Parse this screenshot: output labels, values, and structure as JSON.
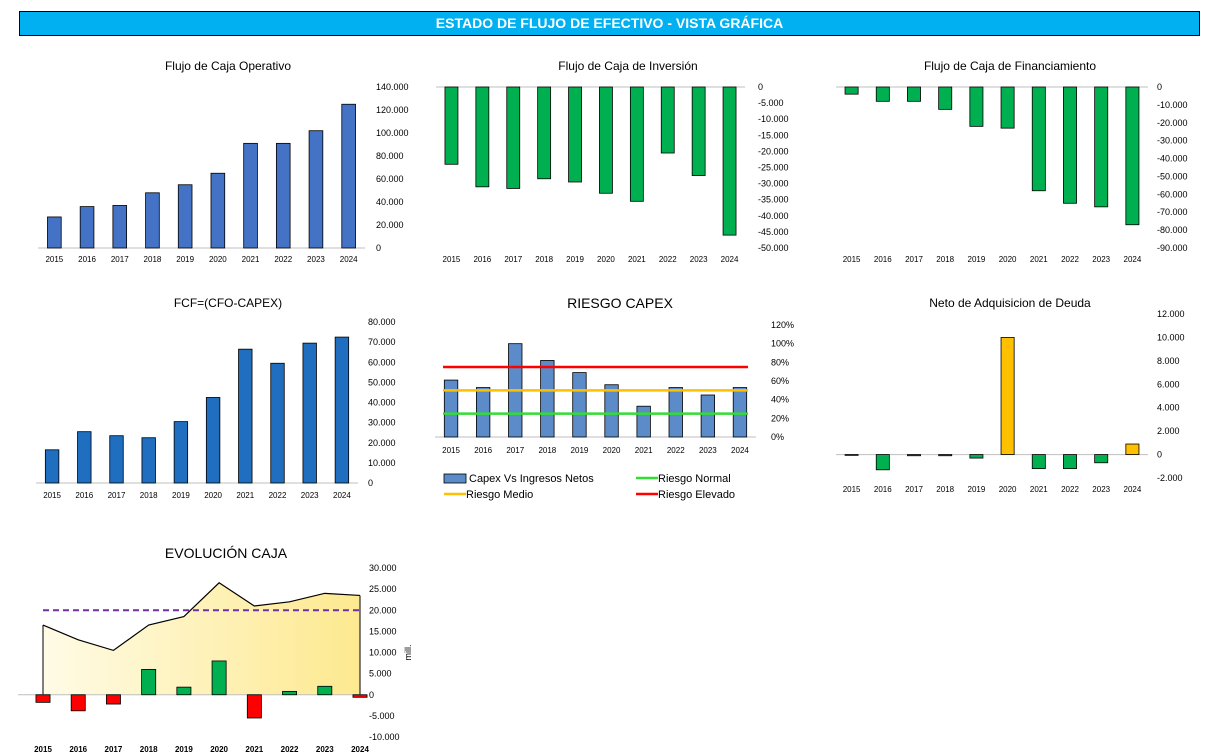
{
  "page": {
    "title": "ESTADO DE FLUJO DE EFECTIVO - VISTA GRÁFICA"
  },
  "colors": {
    "banner": "#00b0f0",
    "blue": "#4472c4",
    "blue_dark": "#1f6ebf",
    "green": "#00b050",
    "red": "#ff0000",
    "orange": "#ffc000",
    "purple": "#7030a0",
    "area_fill": "#fdeea8"
  },
  "chart_data": [
    {
      "type": "bar",
      "title": "Flujo de Caja Operativo",
      "categories": [
        "2015",
        "2016",
        "2017",
        "2018",
        "2019",
        "2020",
        "2021",
        "2022",
        "2023",
        "2024"
      ],
      "values": [
        27000,
        36000,
        37000,
        48000,
        55000,
        65000,
        91000,
        91000,
        102000,
        125000
      ],
      "ylim": [
        0,
        140000
      ],
      "yticks": [
        "0",
        "20.000",
        "40.000",
        "60.000",
        "80.000",
        "100.000",
        "120.000",
        "140.000"
      ],
      "color": "#4472c4",
      "axis": "right"
    },
    {
      "type": "bar",
      "title": "Flujo de Caja de Inversión",
      "categories": [
        "2015",
        "2016",
        "2017",
        "2018",
        "2019",
        "2020",
        "2021",
        "2022",
        "2023",
        "2024"
      ],
      "values": [
        -24000,
        -31000,
        -31500,
        -28500,
        -29500,
        -33000,
        -35500,
        -20500,
        -27500,
        -46000
      ],
      "ylim": [
        -50000,
        0
      ],
      "yticks": [
        "0",
        "-5.000",
        "-10.000",
        "-15.000",
        "-20.000",
        "-25.000",
        "-30.000",
        "-35.000",
        "-40.000",
        "-45.000",
        "-50.000"
      ],
      "color": "#00b050",
      "axis": "right"
    },
    {
      "type": "bar",
      "title": "Flujo de Caja de Financiamiento",
      "categories": [
        "2015",
        "2016",
        "2017",
        "2018",
        "2019",
        "2020",
        "2021",
        "2022",
        "2023",
        "2024"
      ],
      "values": [
        -4000,
        -8000,
        -8000,
        -12500,
        -22000,
        -23000,
        -58000,
        -65000,
        -67000,
        -77000
      ],
      "ylim": [
        -90000,
        0
      ],
      "yticks": [
        "0",
        "-10.000",
        "-20.000",
        "-30.000",
        "-40.000",
        "-50.000",
        "-60.000",
        "-70.000",
        "-80.000",
        "-90.000"
      ],
      "color": "#00b050",
      "axis": "right"
    },
    {
      "type": "bar",
      "title": "FCF=(CFO-CAPEX)",
      "categories": [
        "2015",
        "2016",
        "2017",
        "2018",
        "2019",
        "2020",
        "2021",
        "2022",
        "2023",
        "2024"
      ],
      "values": [
        16500,
        25500,
        23500,
        22500,
        30500,
        42500,
        66500,
        59500,
        69500,
        72500
      ],
      "ylim": [
        0,
        80000
      ],
      "yticks": [
        "0",
        "10.000",
        "20.000",
        "30.000",
        "40.000",
        "50.000",
        "60.000",
        "70.000",
        "80.000"
      ],
      "color": "#1f6ebf",
      "axis": "right"
    },
    {
      "type": "bar",
      "title": "RIESGO CAPEX",
      "categories": [
        "2015",
        "2016",
        "2017",
        "2018",
        "2019",
        "2020",
        "2021",
        "2022",
        "2023",
        "2024"
      ],
      "values": [
        0.61,
        0.53,
        1.0,
        0.82,
        0.69,
        0.56,
        0.33,
        0.53,
        0.45,
        0.53
      ],
      "ylim": [
        0,
        1.2
      ],
      "yticks": [
        "0%",
        "20%",
        "40%",
        "60%",
        "80%",
        "100%",
        "120%"
      ],
      "color": "#5b8bc9",
      "axis": "right",
      "lines": [
        {
          "name": "Riesgo Normal",
          "value": 0.25,
          "color": "#33dd33"
        },
        {
          "name": "Riesgo Medio",
          "value": 0.5,
          "color": "#ffc000"
        },
        {
          "name": "Riesgo Elevado",
          "value": 0.75,
          "color": "#ff0000"
        }
      ],
      "legend": [
        "Capex Vs Ingresos Netos",
        "Riesgo Normal",
        "Riesgo Medio",
        "Riesgo Elevado"
      ]
    },
    {
      "type": "bar",
      "title": "Neto de Adquisicion de Deuda",
      "categories": [
        "2015",
        "2016",
        "2017",
        "2018",
        "2019",
        "2020",
        "2021",
        "2022",
        "2023",
        "2024"
      ],
      "values": [
        0,
        -1300,
        -100,
        -100,
        -300,
        10000,
        -1200,
        -1200,
        -700,
        900
      ],
      "ylim": [
        -2000,
        12000
      ],
      "yticks": [
        "-2.000",
        "0",
        "2.000",
        "4.000",
        "6.000",
        "8.000",
        "10.000",
        "12.000"
      ],
      "pos_color": "#ffc000",
      "neg_color": "#00b050",
      "axis": "right"
    },
    {
      "type": "area",
      "title": "EVOLUCIÓN CAJA",
      "categories": [
        "2015",
        "2016",
        "2017",
        "2018",
        "2019",
        "2020",
        "2021",
        "2022",
        "2023",
        "2024"
      ],
      "area_values": [
        16500,
        13000,
        10500,
        16500,
        18500,
        26500,
        21000,
        22000,
        24000,
        23500
      ],
      "bar_values": [
        -1800,
        -3800,
        -2200,
        6000,
        1800,
        8000,
        -5500,
        800,
        2000,
        -600
      ],
      "reference_line": 20000,
      "ylim": [
        -10000,
        30000
      ],
      "yticks": [
        "-10.000",
        "-5.000",
        "0",
        "5.000",
        "10.000",
        "15.000",
        "20.000",
        "25.000",
        "30.000"
      ],
      "ylabel": "mill.",
      "pos_color": "#00b050",
      "neg_color": "#ff0000",
      "ref_color": "#7030a0",
      "axis": "right"
    }
  ]
}
